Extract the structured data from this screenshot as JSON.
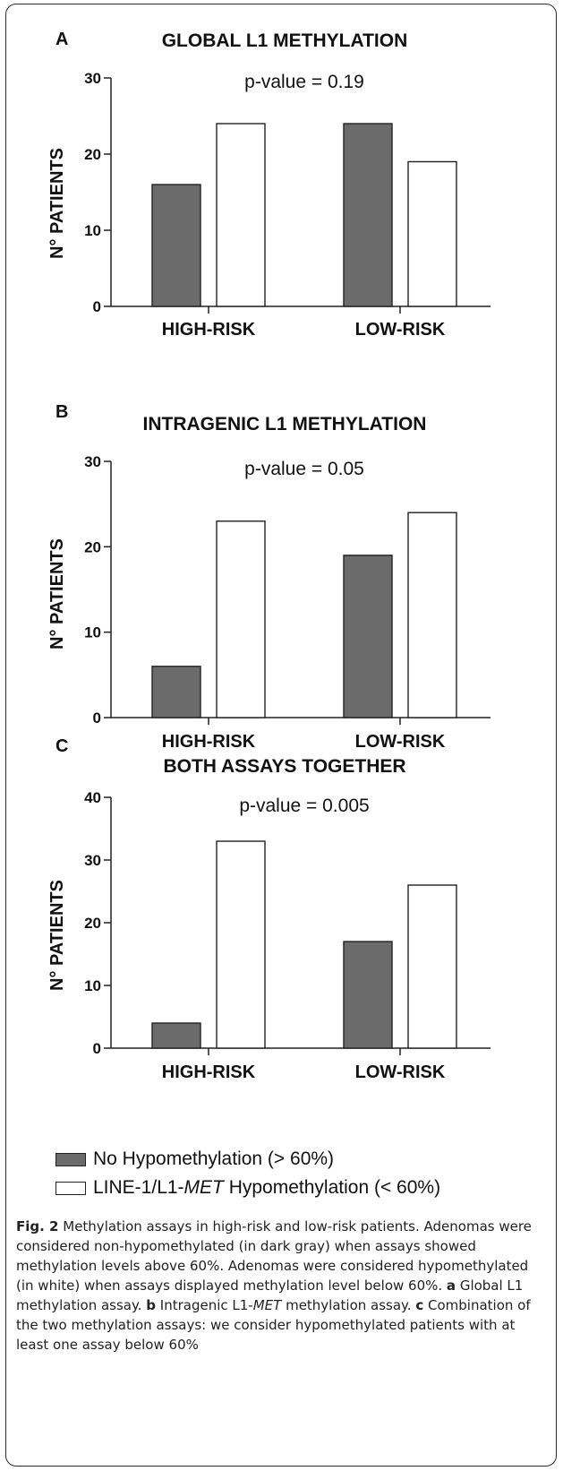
{
  "chart_data": [
    {
      "type": "bar",
      "panel": "A",
      "title": "GLOBAL L1 METHYLATION",
      "annotation": "p-value = 0.19",
      "ylabel": "N° PATIENTS",
      "xlabel": "",
      "ylim": [
        0,
        30
      ],
      "yticks": [
        "0",
        "10",
        "20",
        "30"
      ],
      "categories": [
        "HIGH-RISK",
        "LOW-RISK"
      ],
      "series": [
        {
          "name": "No Hypomethylation (> 60%)",
          "color": "#6b6b6b",
          "values": [
            16,
            24
          ]
        },
        {
          "name": "LINE-1/L1-MET Hypomethylation (< 60%)",
          "color": "#ffffff",
          "values": [
            24,
            19
          ]
        }
      ],
      "grid": false
    },
    {
      "type": "bar",
      "panel": "B",
      "title": "INTRAGENIC L1 METHYLATION",
      "annotation": "p-value = 0.05",
      "ylabel": "N° PATIENTS",
      "xlabel": "",
      "ylim": [
        0,
        30
      ],
      "yticks": [
        "0",
        "10",
        "20",
        "30"
      ],
      "categories": [
        "HIGH-RISK",
        "LOW-RISK"
      ],
      "series": [
        {
          "name": "No Hypomethylation (> 60%)",
          "color": "#6b6b6b",
          "values": [
            6,
            19
          ]
        },
        {
          "name": "LINE-1/L1-MET Hypomethylation (< 60%)",
          "color": "#ffffff",
          "values": [
            23,
            24
          ]
        }
      ],
      "grid": false
    },
    {
      "type": "bar",
      "panel": "C",
      "title": "BOTH ASSAYS TOGETHER",
      "annotation": "p-value = 0.005",
      "ylabel": "N° PATIENTS",
      "xlabel": "",
      "ylim": [
        0,
        40
      ],
      "yticks": [
        "0",
        "10",
        "20",
        "30",
        "40"
      ],
      "categories": [
        "HIGH-RISK",
        "LOW-RISK"
      ],
      "series": [
        {
          "name": "No Hypomethylation (> 60%)",
          "color": "#6b6b6b",
          "values": [
            4,
            17
          ]
        },
        {
          "name": "LINE-1/L1-MET Hypomethylation (< 60%)",
          "color": "#ffffff",
          "values": [
            33,
            26
          ]
        }
      ],
      "grid": false
    }
  ],
  "legend": {
    "items": [
      {
        "pre": "No Hypomethylation (> 60%)",
        "ital": "",
        "post": "",
        "color": "#6b6b6b"
      },
      {
        "pre": "LINE-1/L1-",
        "ital": "MET",
        "post": " Hypomethylation (< 60%)",
        "color": "#ffffff"
      }
    ]
  },
  "caption": {
    "fig_label": "Fig. 2",
    "text1": "  Methylation assays in high-risk and low-risk patients. Adenomas were considered non-hypomethylated (in dark gray) when assays showed methylation levels above 60%. Adenomas were considered hypomethylated (in white) when assays displayed methylation level below 60%. ",
    "a_label": "a",
    "a_text": " Global L1 methylation assay. ",
    "b_label": "b",
    "b_text1": " Intragenic L1-",
    "b_ital": "MET",
    "b_text2": " methylation assay. ",
    "c_label": "c",
    "c_text": " Combination of the two methylation assays: we consider hypomethylated patients with at least one assay below 60%"
  }
}
